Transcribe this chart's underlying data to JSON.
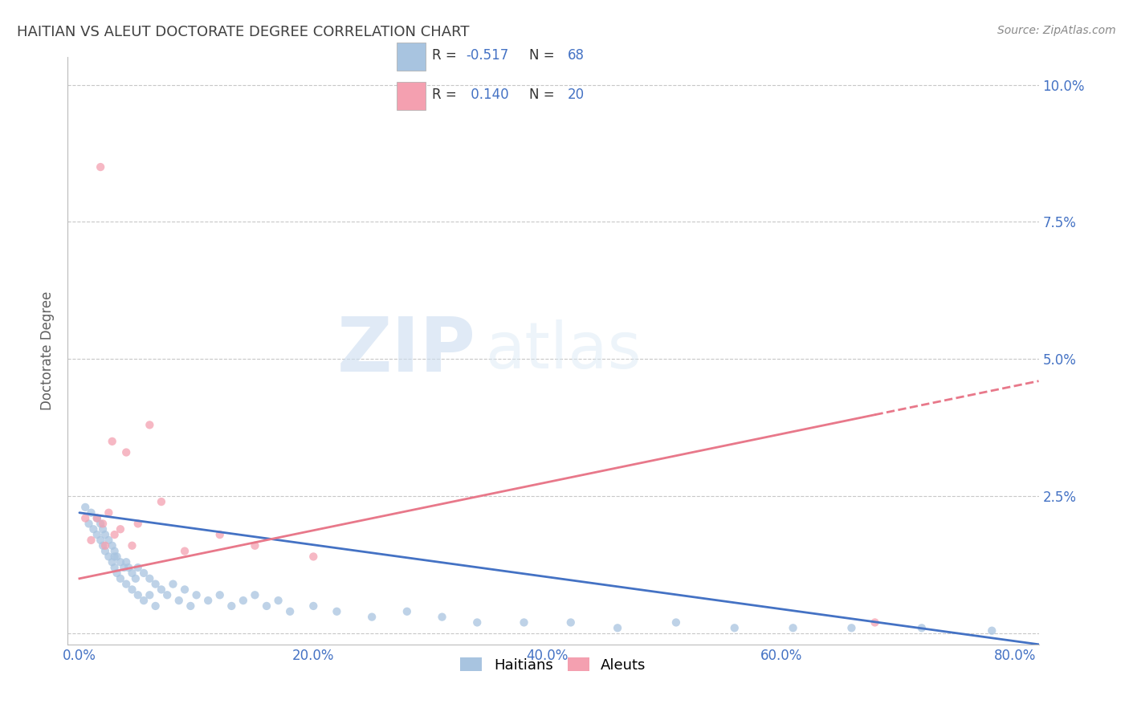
{
  "title": "HAITIAN VS ALEUT DOCTORATE DEGREE CORRELATION CHART",
  "source": "Source: ZipAtlas.com",
  "xlabel_label": "Haitians",
  "ylabel_label": "Doctorate Degree",
  "x_label2": "Aleuts",
  "xlim": [
    -0.01,
    0.82
  ],
  "ylim": [
    -0.002,
    0.105
  ],
  "xticks": [
    0.0,
    0.2,
    0.4,
    0.6,
    0.8
  ],
  "yticks": [
    0.0,
    0.025,
    0.05,
    0.075,
    0.1
  ],
  "ytick_labels": [
    "",
    "2.5%",
    "5.0%",
    "7.5%",
    "10.0%"
  ],
  "xtick_labels": [
    "0.0%",
    "20.0%",
    "40.0%",
    "60.0%",
    "80.0%"
  ],
  "haitian_R": -0.517,
  "haitian_N": 68,
  "aleut_R": 0.14,
  "aleut_N": 20,
  "haitian_color": "#a8c4e0",
  "aleut_color": "#f4a0b0",
  "haitian_line_color": "#4472c4",
  "aleut_line_color": "#e8788a",
  "grid_color": "#c8c8c8",
  "axis_label_color": "#4472c4",
  "title_color": "#404040",
  "ylabel_color": "#606060",
  "background_color": "#ffffff",
  "watermark_zip": "ZIP",
  "watermark_atlas": "atlas",
  "haitian_x": [
    0.005,
    0.008,
    0.01,
    0.012,
    0.015,
    0.015,
    0.018,
    0.018,
    0.02,
    0.02,
    0.022,
    0.022,
    0.025,
    0.025,
    0.028,
    0.028,
    0.03,
    0.03,
    0.03,
    0.032,
    0.032,
    0.035,
    0.035,
    0.038,
    0.04,
    0.04,
    0.042,
    0.045,
    0.045,
    0.048,
    0.05,
    0.05,
    0.055,
    0.055,
    0.06,
    0.06,
    0.065,
    0.065,
    0.07,
    0.075,
    0.08,
    0.085,
    0.09,
    0.095,
    0.1,
    0.11,
    0.12,
    0.13,
    0.14,
    0.15,
    0.16,
    0.17,
    0.18,
    0.2,
    0.22,
    0.25,
    0.28,
    0.31,
    0.34,
    0.38,
    0.42,
    0.46,
    0.51,
    0.56,
    0.61,
    0.66,
    0.72,
    0.78
  ],
  "haitian_y": [
    0.023,
    0.02,
    0.022,
    0.019,
    0.021,
    0.018,
    0.02,
    0.017,
    0.019,
    0.016,
    0.018,
    0.015,
    0.017,
    0.014,
    0.016,
    0.013,
    0.015,
    0.014,
    0.012,
    0.014,
    0.011,
    0.013,
    0.01,
    0.012,
    0.013,
    0.009,
    0.012,
    0.011,
    0.008,
    0.01,
    0.012,
    0.007,
    0.011,
    0.006,
    0.01,
    0.007,
    0.009,
    0.005,
    0.008,
    0.007,
    0.009,
    0.006,
    0.008,
    0.005,
    0.007,
    0.006,
    0.007,
    0.005,
    0.006,
    0.007,
    0.005,
    0.006,
    0.004,
    0.005,
    0.004,
    0.003,
    0.004,
    0.003,
    0.002,
    0.002,
    0.002,
    0.001,
    0.002,
    0.001,
    0.001,
    0.001,
    0.001,
    0.0005
  ],
  "aleut_x": [
    0.005,
    0.01,
    0.015,
    0.018,
    0.02,
    0.022,
    0.025,
    0.028,
    0.03,
    0.035,
    0.04,
    0.045,
    0.05,
    0.06,
    0.07,
    0.09,
    0.12,
    0.15,
    0.2,
    0.68
  ],
  "aleut_y": [
    0.021,
    0.017,
    0.021,
    0.085,
    0.02,
    0.016,
    0.022,
    0.035,
    0.018,
    0.019,
    0.033,
    0.016,
    0.02,
    0.038,
    0.024,
    0.015,
    0.018,
    0.016,
    0.014,
    0.002
  ],
  "haitian_trend_x0": 0.0,
  "haitian_trend_y0": 0.022,
  "haitian_trend_x1": 0.82,
  "haitian_trend_y1": -0.002,
  "aleut_trend_x0": 0.0,
  "aleut_trend_y0": 0.01,
  "aleut_trend_x1": 0.82,
  "aleut_trend_y1": 0.046
}
